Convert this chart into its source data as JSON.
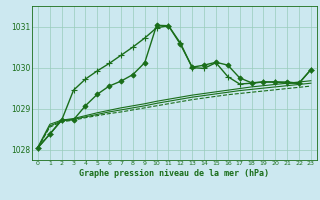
{
  "title": "Graphe pression niveau de la mer (hPa)",
  "bg_color": "#cce8f0",
  "line_color": "#1a6e1a",
  "grid_color": "#99ccbb",
  "ylim": [
    1027.75,
    1031.5
  ],
  "xlim": [
    -0.5,
    23.5
  ],
  "yticks": [
    1028,
    1029,
    1030,
    1031
  ],
  "xticks": [
    0,
    1,
    2,
    3,
    4,
    5,
    6,
    7,
    8,
    9,
    10,
    11,
    12,
    13,
    14,
    15,
    16,
    17,
    18,
    19,
    20,
    21,
    22,
    23
  ],
  "series": [
    {
      "x": [
        0,
        1,
        2,
        3,
        4,
        5,
        6,
        7,
        8,
        9,
        10,
        11,
        12,
        13,
        14,
        15,
        16,
        17,
        18,
        19,
        20,
        21,
        22,
        23
      ],
      "y": [
        1028.05,
        1028.55,
        1028.68,
        1028.72,
        1028.78,
        1028.83,
        1028.88,
        1028.92,
        1028.97,
        1029.02,
        1029.07,
        1029.12,
        1029.17,
        1029.22,
        1029.26,
        1029.3,
        1029.34,
        1029.37,
        1029.4,
        1029.43,
        1029.46,
        1029.49,
        1029.52,
        1029.55
      ],
      "style": "--",
      "marker": null,
      "lw": 0.8
    },
    {
      "x": [
        0,
        1,
        2,
        3,
        4,
        5,
        6,
        7,
        8,
        9,
        10,
        11,
        12,
        13,
        14,
        15,
        16,
        17,
        18,
        19,
        20,
        21,
        22,
        23
      ],
      "y": [
        1028.05,
        1028.58,
        1028.7,
        1028.74,
        1028.8,
        1028.86,
        1028.92,
        1028.97,
        1029.02,
        1029.07,
        1029.13,
        1029.18,
        1029.23,
        1029.28,
        1029.32,
        1029.36,
        1029.4,
        1029.44,
        1029.47,
        1029.5,
        1029.53,
        1029.56,
        1029.59,
        1029.62
      ],
      "style": "-",
      "marker": null,
      "lw": 0.8
    },
    {
      "x": [
        0,
        1,
        2,
        3,
        4,
        5,
        6,
        7,
        8,
        9,
        10,
        11,
        12,
        13,
        14,
        15,
        16,
        17,
        18,
        19,
        20,
        21,
        22,
        23
      ],
      "y": [
        1028.07,
        1028.62,
        1028.72,
        1028.76,
        1028.83,
        1028.9,
        1028.96,
        1029.02,
        1029.07,
        1029.12,
        1029.18,
        1029.23,
        1029.28,
        1029.33,
        1029.37,
        1029.41,
        1029.45,
        1029.49,
        1029.53,
        1029.56,
        1029.59,
        1029.62,
        1029.65,
        1029.68
      ],
      "style": "-",
      "marker": null,
      "lw": 0.8
    },
    {
      "x": [
        0,
        1,
        2,
        3,
        4,
        5,
        6,
        7,
        8,
        9,
        10,
        11,
        12,
        13,
        14,
        15,
        16,
        17,
        18,
        19,
        20,
        21,
        22,
        23
      ],
      "y": [
        1028.05,
        1028.38,
        1028.72,
        1028.73,
        1029.07,
        1029.35,
        1029.55,
        1029.67,
        1029.83,
        1030.12,
        1031.03,
        1031.02,
        1030.57,
        1030.01,
        1030.06,
        1030.13,
        1030.06,
        1029.75,
        1029.63,
        1029.65,
        1029.65,
        1029.65,
        1029.62,
        1029.95
      ],
      "style": "-",
      "marker": "D",
      "lw": 1.0,
      "ms": 2.5
    },
    {
      "x": [
        0,
        1,
        2,
        3,
        4,
        5,
        6,
        7,
        8,
        9,
        10,
        11,
        12,
        13,
        14,
        15,
        16,
        17,
        18,
        19,
        20,
        21,
        22,
        23
      ],
      "y": [
        1028.05,
        1028.38,
        1028.72,
        1029.45,
        1029.72,
        1029.92,
        1030.1,
        1030.3,
        1030.5,
        1030.72,
        1030.97,
        1031.02,
        1030.6,
        1030.0,
        1029.98,
        1030.12,
        1029.78,
        1029.6,
        1029.62,
        1029.65,
        1029.65,
        1029.62,
        1029.62,
        1029.95
      ],
      "style": "-",
      "marker": "+",
      "lw": 1.0,
      "ms": 4.5
    }
  ]
}
